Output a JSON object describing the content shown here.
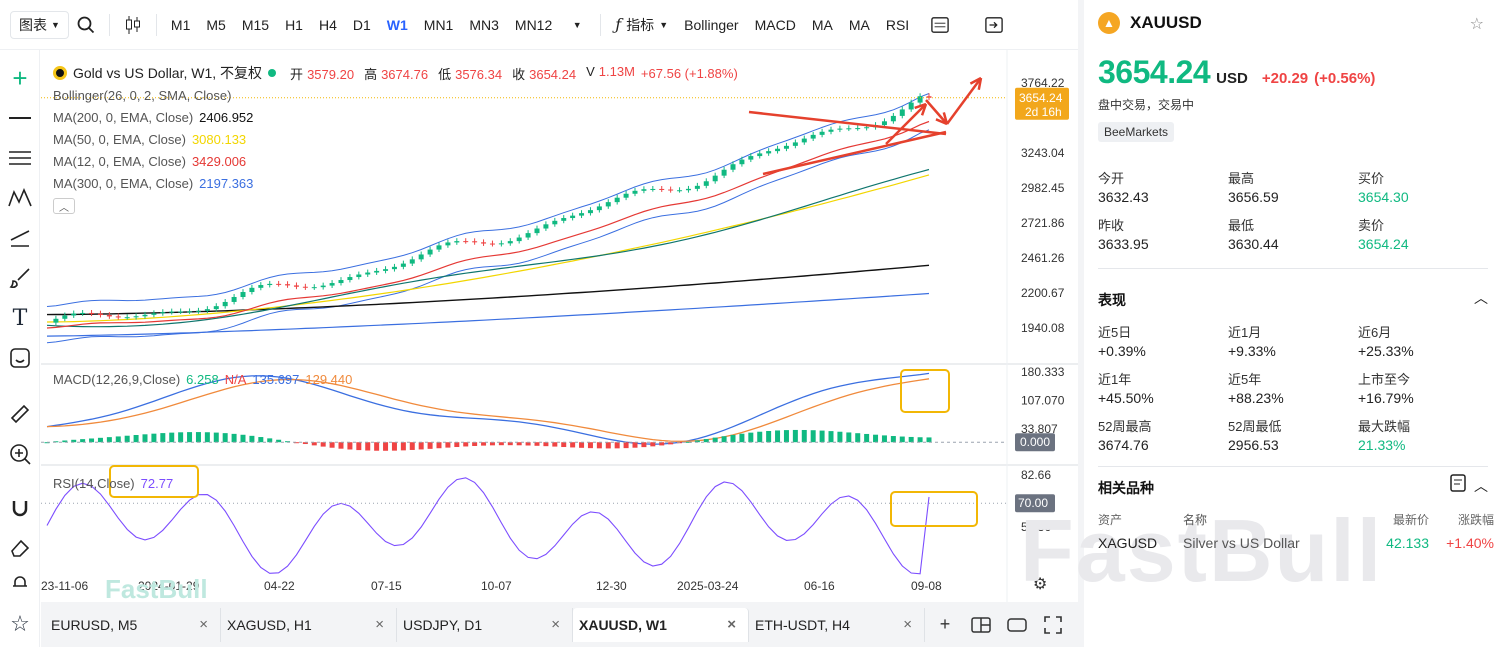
{
  "toolbar": {
    "chart_type": "图表",
    "timeframes": [
      "M1",
      "M5",
      "M15",
      "H1",
      "H4",
      "D1",
      "W1",
      "MN1",
      "MN3",
      "MN12"
    ],
    "active_timeframe": "W1",
    "indicators_label": "指标",
    "indicator_buttons": [
      "Bollinger",
      "MACD",
      "MA",
      "MA",
      "RSI"
    ]
  },
  "legend": {
    "title": "Gold vs US Dollar, W1, 不复权",
    "ohlc": [
      {
        "k": "开",
        "v": "3579.20"
      },
      {
        "k": "高",
        "v": "3674.76"
      },
      {
        "k": "低",
        "v": "3576.34"
      },
      {
        "k": "收",
        "v": "3654.24"
      },
      {
        "k": "V",
        "v": "1.13M"
      }
    ],
    "change": "+67.56 (+1.88%)",
    "indicators": [
      {
        "name": "Bollinger(26, 0, 2, SMA, Close)",
        "value": "",
        "color": "#555555"
      },
      {
        "name": "MA(200, 0, EMA, Close)",
        "value": "2406.952",
        "color": "#111111"
      },
      {
        "name": "MA(50, 0, EMA, Close)",
        "value": "3080.133",
        "color": "#f2d600"
      },
      {
        "name": "MA(12, 0, EMA, Close)",
        "value": "3429.006",
        "color": "#e53935"
      },
      {
        "name": "MA(300, 0, EMA, Close)",
        "value": "2197.363",
        "color": "#3b6fe0"
      }
    ],
    "macd_label": "MACD(12,26,9,Close)",
    "macd_values": [
      {
        "v": "6.258",
        "color": "#10b981"
      },
      {
        "v": "N/A",
        "color": "#ef4444"
      },
      {
        "v": "135.697",
        "color": "#3b6fe0"
      },
      {
        "v": "129.440",
        "color": "#f08a3c"
      }
    ],
    "rsi_label": "RSI(14,Close)",
    "rsi_value": "72.77"
  },
  "price_axis": [
    "3764.22",
    "3243.04",
    "2982.45",
    "2721.86",
    "2461.26",
    "2200.67",
    "1940.08"
  ],
  "price_tag": {
    "price": "3654.24",
    "countdown": "2d 16h"
  },
  "macd_axis": [
    "180.333",
    "107.070",
    "33.807"
  ],
  "macd_tag": "0.000",
  "rsi_axis": [
    "82.66",
    "59.36"
  ],
  "rsi_tag": "70.00",
  "time_axis": [
    "23-11-06",
    "2024-01-29",
    "04-22",
    "07-15",
    "10-07",
    "12-30",
    "2025-03-24",
    "06-16",
    "09-08"
  ],
  "tabs": [
    {
      "label": "EURUSD, M5",
      "active": false
    },
    {
      "label": "XAGUSD, H1",
      "active": false
    },
    {
      "label": "USDJPY, D1",
      "active": false
    },
    {
      "label": "XAUUSD, W1",
      "active": true
    },
    {
      "label": "ETH-USDT, H4",
      "active": false
    }
  ],
  "watermark": "FastBull",
  "panel": {
    "symbol": "XAUUSD",
    "price": "3654.24",
    "currency": "USD",
    "change": "+20.29",
    "change_pct": "(+0.56%)",
    "status": "盘中交易，交易中",
    "broker": "BeeMarkets",
    "quote": [
      {
        "label": "今开",
        "value": "3632.43",
        "green": false
      },
      {
        "label": "最高",
        "value": "3656.59",
        "green": false
      },
      {
        "label": "买价",
        "value": "3654.30",
        "green": true
      },
      {
        "label": "昨收",
        "value": "3633.95",
        "green": false
      },
      {
        "label": "最低",
        "value": "3630.44",
        "green": false
      },
      {
        "label": "卖价",
        "value": "3654.24",
        "green": true
      }
    ],
    "perf_title": "表现",
    "perf": [
      {
        "label": "近5日",
        "value": "+0.39%",
        "green": false
      },
      {
        "label": "近1月",
        "value": "+9.33%",
        "green": false
      },
      {
        "label": "近6月",
        "value": "+25.33%",
        "green": false
      },
      {
        "label": "近1年",
        "value": "+45.50%",
        "green": false
      },
      {
        "label": "近5年",
        "value": "+88.23%",
        "green": false
      },
      {
        "label": "上市至今",
        "value": "+16.79%",
        "green": false
      },
      {
        "label": "52周最高",
        "value": "3674.76",
        "green": false
      },
      {
        "label": "52周最低",
        "value": "2956.53",
        "green": false
      },
      {
        "label": "最大跌幅",
        "value": "21.33%",
        "green": true
      }
    ],
    "related_title": "相关品种",
    "related_headers": [
      "资产",
      "名称",
      "最新价",
      "涨跌幅"
    ],
    "related_rows": [
      {
        "asset": "XAGUSD",
        "name": "Silver vs US Dollar",
        "price": "42.133",
        "change": "+1.40%"
      }
    ]
  },
  "colors": {
    "up": "#10b981",
    "down": "#ef4444",
    "accent": "#2962ff",
    "annotation": "#e5412d",
    "highlight": "#f2b705"
  }
}
